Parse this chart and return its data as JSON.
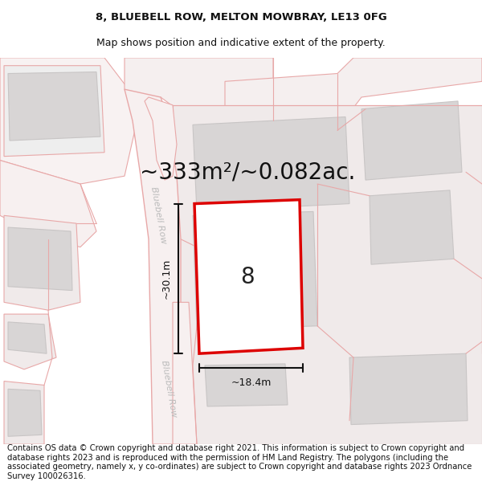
{
  "title_line1": "8, BLUEBELL ROW, MELTON MOWBRAY, LE13 0FG",
  "title_line2": "Map shows position and indicative extent of the property.",
  "area_label": "~333m²/~0.082ac.",
  "number_label": "8",
  "dim_width": "~18.4m",
  "dim_height": "~30.1m",
  "road_label_1": "Bluebell Row",
  "road_label_2": "Bluebell Row",
  "footer_text": "Contains OS data © Crown copyright and database right 2021. This information is subject to Crown copyright and database rights 2023 and is reproduced with the permission of HM Land Registry. The polygons (including the associated geometry, namely x, y co-ordinates) are subject to Crown copyright and database rights 2023 Ordnance Survey 100026316.",
  "bg_color": "#ffffff",
  "map_bg": "#f5eded",
  "road_color": "#e8a8a8",
  "road_fill": "#f7f0f0",
  "building_fill": "#d8d5d5",
  "building_edge": "#c8c5c5",
  "plot_fill": "#ffffff",
  "plot_edge": "#dd0000",
  "dim_color": "#111111",
  "text_color": "#111111",
  "road_text_color": "#bbbbbb",
  "title_fontsize": 9.5,
  "footer_fontsize": 7.2,
  "area_fontsize": 20,
  "number_fontsize": 20,
  "dim_fontsize": 9
}
